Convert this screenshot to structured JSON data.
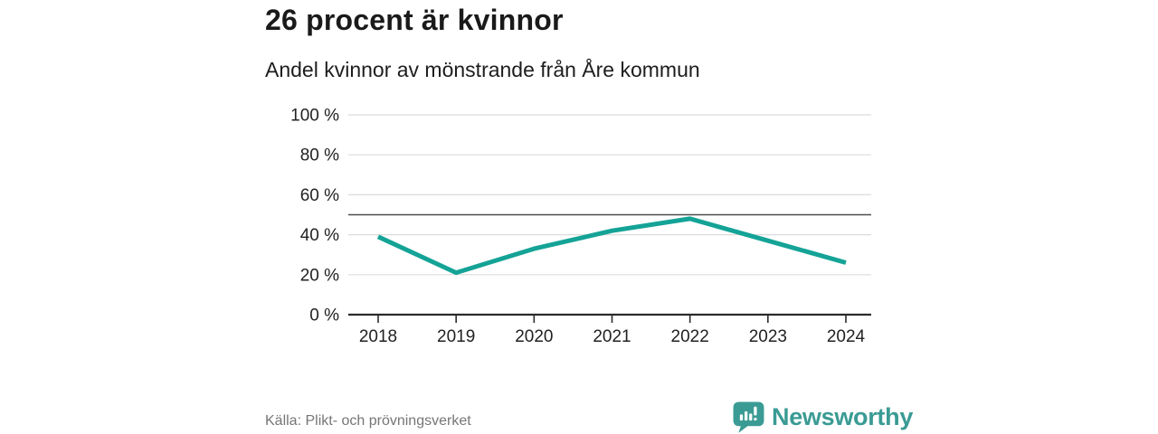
{
  "header": {
    "title": "26 procent är kvinnor",
    "subtitle": "Andel kvinnor av mönstrande från Åre kommun"
  },
  "chart_data": {
    "type": "line",
    "title": "26 procent är kvinnor",
    "subtitle": "Andel kvinnor av mönstrande från Åre kommun",
    "x": [
      2018,
      2019,
      2020,
      2021,
      2022,
      2023,
      2024
    ],
    "series": [
      {
        "name": "Andel kvinnor av mönstrande",
        "values": [
          39,
          21,
          33,
          42,
          48,
          37,
          26
        ]
      }
    ],
    "xlabel": "",
    "ylabel": "",
    "ylim": [
      0,
      100
    ],
    "yticks": [
      0,
      20,
      40,
      60,
      80,
      100
    ],
    "ytick_suffix": " %",
    "reference_line": 50,
    "grid": true,
    "legend": false,
    "line_color": "#14a396",
    "axis_color": "#2b2b2b",
    "gridline_color": "#dcdcdc",
    "reference_line_color": "#4d4d4d",
    "tick_label_color": "#222222"
  },
  "footer": {
    "source": "Källa: Plikt- och prövningsverket",
    "brand": "Newsworthy"
  },
  "icons": {
    "brand_logo": "newsworthy-speech-bubble-barchart-icon"
  },
  "colors": {
    "brand_teal": "#3a9b94",
    "title_text": "#1a1a1a",
    "source_text": "#767676",
    "background": "#ffffff"
  }
}
